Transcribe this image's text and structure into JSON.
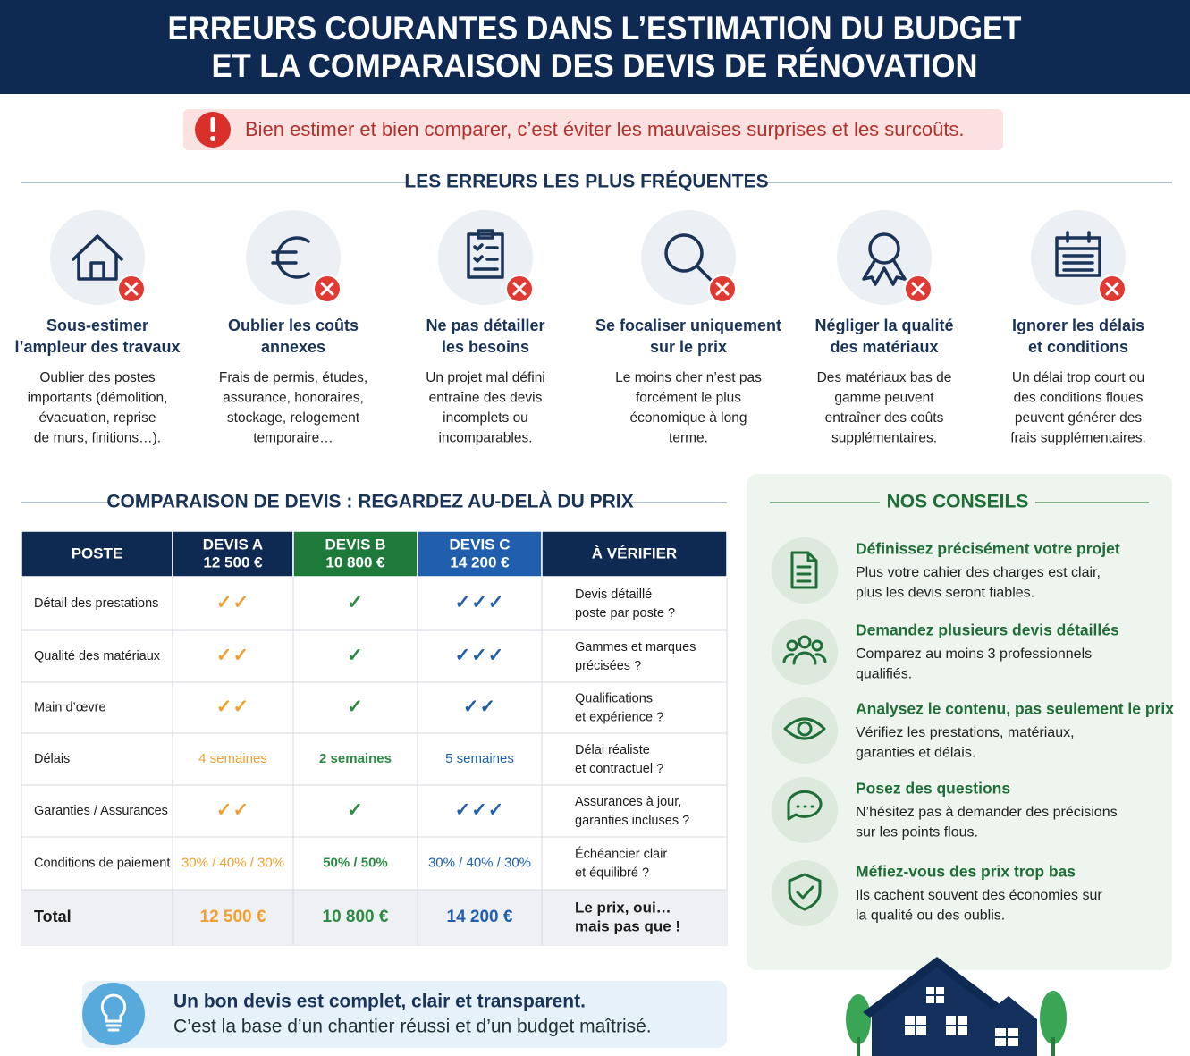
{
  "header": {
    "title_lines": [
      "ERREURS COURANTES DANS L’ESTIMATION DU BUDGET",
      "ET LA COMPARAISON DES DEVIS DE RÉNOVATION"
    ]
  },
  "alert": "Bien estimer et bien comparer, c’est éviter les mauvaises surprises et les surcoûts.",
  "errors": {
    "title": "LES ERREURS LES PLUS FRÉQUENTES",
    "items": [
      {
        "title": [
          "Sous-estimer",
          "l’ampleur des travaux"
        ],
        "text": [
          "Oublier des postes",
          "importants (démolition,",
          "évacuation, reprise",
          "de murs, finitions…)."
        ]
      },
      {
        "title": [
          "Oublier les coûts",
          "annexes"
        ],
        "text": [
          "Frais de permis, études,",
          "assurance, honoraires,",
          "stockage, relogement",
          "temporaire…"
        ]
      },
      {
        "title": [
          "Ne pas détailler",
          "les besoins"
        ],
        "text": [
          "Un projet mal défini",
          "entraîne des devis",
          "incomplets ou",
          "incomparables."
        ]
      },
      {
        "title": [
          "Se focaliser uniquement",
          "sur le prix"
        ],
        "text": [
          "Le moins cher n’est pas",
          "forcément le plus",
          "économique à long",
          "terme."
        ]
      },
      {
        "title": [
          "Négliger la qualité",
          "des matériaux"
        ],
        "text": [
          "Des matériaux bas de",
          "gamme peuvent",
          "entraîner des coûts",
          "supplémentaires."
        ]
      },
      {
        "title": [
          "Ignorer les délais",
          "et conditions"
        ],
        "text": [
          "Un délai trop court ou",
          "des conditions floues",
          "peuvent générer des",
          "frais supplémentaires."
        ]
      }
    ]
  },
  "comparison": {
    "title": "COMPARAISON DE DEVIS : REGARDEZ AU-DELÀ DU PRIX",
    "columns": [
      [
        "POSTE"
      ],
      [
        "DEVIS A",
        "12 500 €"
      ],
      [
        "DEVIS B",
        "10 800 €"
      ],
      [
        "DEVIS C",
        "14 200 €"
      ],
      [
        "À VÉRIFIER"
      ]
    ],
    "rows": [
      [
        "Détail des prestations",
        "✓✓",
        "✓",
        "✓✓✓",
        [
          "Devis détaillé",
          "poste par poste ?"
        ]
      ],
      [
        "Qualité des matériaux",
        "✓✓",
        "✓",
        "✓✓✓",
        [
          "Gammes et marques",
          "précisées ?"
        ]
      ],
      [
        "Main d’œvre",
        "✓✓",
        "✓",
        "✓✓",
        [
          "Qualifications",
          "et expérience ?"
        ]
      ],
      [
        "Délais",
        "4 semaines",
        "2 semaines",
        "5 semaines",
        [
          "Délai réaliste",
          "et contractuel ?"
        ]
      ],
      [
        "Garanties / Assurances",
        "✓✓",
        "✓",
        "✓✓✓",
        [
          "Assurances à jour,",
          "garanties incluses ?"
        ]
      ],
      [
        "Conditions de paiement",
        "30% / 40% / 30%",
        "50% / 50%",
        "30% / 40% / 30%",
        [
          "Échéancier clair",
          "et équilibré ?"
        ]
      ]
    ],
    "total": [
      "Total",
      "12 500 €",
      "10 800 €",
      "14 200 €",
      [
        "Le prix, oui…",
        "mais pas que !"
      ]
    ]
  },
  "tips": {
    "title": "NOS CONSEILS",
    "items": [
      {
        "title": "Définissez précisément votre projet",
        "text": [
          "Plus votre cahier des charges est clair,",
          "plus les devis seront fiables."
        ]
      },
      {
        "title": "Demandez plusieurs devis détaillés",
        "text": [
          "Comparez au moins 3 professionnels",
          "qualifiés."
        ]
      },
      {
        "title": "Analysez le contenu, pas seulement le prix",
        "text": [
          "Vérifiez les prestations, matériaux,",
          "garanties et délais."
        ]
      },
      {
        "title": "Posez des questions",
        "text": [
          "N’hésitez pas à demander des précisions",
          "sur les points flous."
        ]
      },
      {
        "title": "Méfiez-vous des prix trop bas",
        "text": [
          "Ils cachent souvent des économies sur",
          "la qualité ou des oublis."
        ]
      }
    ]
  },
  "footer": {
    "title": "Un bon devis est complet, clair et transparent.",
    "text": "C’est la base d’un chantier réussi et d’un budget maîtrisé."
  }
}
